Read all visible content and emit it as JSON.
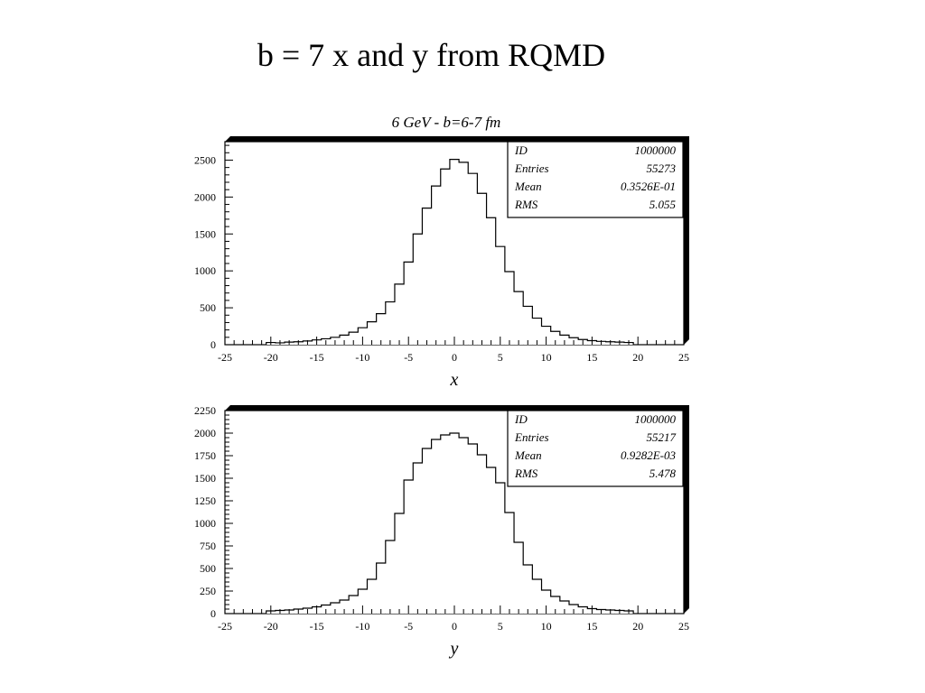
{
  "slide_title": "b = 7 x and y from RQMD",
  "chart_data": [
    {
      "type": "bar",
      "title": "6 GeV - b=6-7 fm",
      "xlabel": "x",
      "ylabel": "",
      "xlim": [
        -25,
        25
      ],
      "ylim": [
        0,
        2750
      ],
      "yticks": [
        0,
        500,
        1000,
        1500,
        2000,
        2500
      ],
      "xticks": [
        -25,
        -20,
        -15,
        -10,
        -5,
        0,
        5,
        10,
        15,
        20,
        25
      ],
      "xtick_labels": [
        "-25",
        "-20",
        "-15",
        "-10",
        "-5",
        "0",
        "5",
        "10",
        "15",
        "20",
        "25"
      ],
      "ytick_labels": [
        "0",
        "500",
        "1000",
        "1500",
        "2000",
        "2500"
      ],
      "grid": false,
      "bin_width": 1,
      "x": [
        -20,
        -19,
        -18,
        -17,
        -16,
        -15,
        -14,
        -13,
        -12,
        -11,
        -10,
        -9,
        -8,
        -7,
        -6,
        -5,
        -4,
        -3,
        -2,
        -1,
        0,
        1,
        2,
        3,
        4,
        5,
        6,
        7,
        8,
        9,
        10,
        11,
        12,
        13,
        14,
        15,
        16,
        17,
        18,
        19
      ],
      "values": [
        30,
        25,
        35,
        40,
        50,
        65,
        80,
        100,
        130,
        170,
        230,
        310,
        420,
        580,
        820,
        1120,
        1500,
        1850,
        2150,
        2380,
        2510,
        2470,
        2320,
        2050,
        1720,
        1330,
        990,
        720,
        520,
        360,
        250,
        180,
        130,
        95,
        70,
        55,
        45,
        40,
        35,
        30
      ],
      "stats": [
        {
          "label": "ID",
          "value": "1000000"
        },
        {
          "label": "Entries",
          "value": "55273"
        },
        {
          "label": "Mean",
          "value": "0.3526E-01"
        },
        {
          "label": "RMS",
          "value": "5.055"
        }
      ]
    },
    {
      "type": "bar",
      "title": "",
      "xlabel": "y",
      "ylabel": "",
      "xlim": [
        -25,
        25
      ],
      "ylim": [
        0,
        2250
      ],
      "yticks": [
        0,
        250,
        500,
        750,
        1000,
        1250,
        1500,
        1750,
        2000,
        2250
      ],
      "xticks": [
        -25,
        -20,
        -15,
        -10,
        -5,
        0,
        5,
        10,
        15,
        20,
        25
      ],
      "xtick_labels": [
        "-25",
        "-20",
        "-15",
        "-10",
        "-5",
        "0",
        "5",
        "10",
        "15",
        "20",
        "25"
      ],
      "ytick_labels": [
        "0",
        "250",
        "500",
        "750",
        "1000",
        "1250",
        "1500",
        "1750",
        "2000",
        "2250"
      ],
      "grid": false,
      "bin_width": 1,
      "x": [
        -20,
        -19,
        -18,
        -17,
        -16,
        -15,
        -14,
        -13,
        -12,
        -11,
        -10,
        -9,
        -8,
        -7,
        -6,
        -5,
        -4,
        -3,
        -2,
        -1,
        0,
        1,
        2,
        3,
        4,
        5,
        6,
        7,
        8,
        9,
        10,
        11,
        12,
        13,
        14,
        15,
        16,
        17,
        18,
        19
      ],
      "values": [
        30,
        35,
        40,
        50,
        60,
        75,
        95,
        120,
        150,
        200,
        270,
        380,
        560,
        810,
        1110,
        1480,
        1670,
        1830,
        1930,
        1980,
        2000,
        1950,
        1880,
        1760,
        1620,
        1450,
        1120,
        790,
        540,
        380,
        260,
        190,
        140,
        100,
        75,
        55,
        45,
        40,
        35,
        30
      ],
      "stats": [
        {
          "label": "ID",
          "value": "1000000"
        },
        {
          "label": "Entries",
          "value": "55217"
        },
        {
          "label": "Mean",
          "value": "0.9282E-03"
        },
        {
          "label": "RMS",
          "value": "5.478"
        }
      ]
    }
  ]
}
